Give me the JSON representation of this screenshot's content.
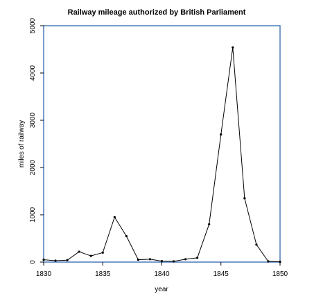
{
  "chart_data": {
    "type": "line",
    "title": "Railway mileage authorized by British Parliament",
    "xlabel": "year",
    "ylabel": "miles of railway",
    "xlim": [
      1830,
      1850
    ],
    "ylim": [
      0,
      5000
    ],
    "xticks": [
      1830,
      1835,
      1840,
      1845,
      1850
    ],
    "yticks": [
      0,
      1000,
      2000,
      3000,
      4000,
      5000
    ],
    "grid": false,
    "frame_color": "#4a7ab8",
    "series": [
      {
        "x": [
          1830,
          1831,
          1832,
          1833,
          1834,
          1835,
          1836,
          1837,
          1838,
          1839,
          1840,
          1841,
          1842,
          1843,
          1844,
          1845,
          1846,
          1847,
          1848,
          1849,
          1850
        ],
        "y": [
          50,
          30,
          40,
          220,
          130,
          200,
          950,
          550,
          50,
          60,
          20,
          15,
          60,
          90,
          800,
          2700,
          4540,
          1350,
          370,
          15,
          5
        ]
      }
    ]
  }
}
